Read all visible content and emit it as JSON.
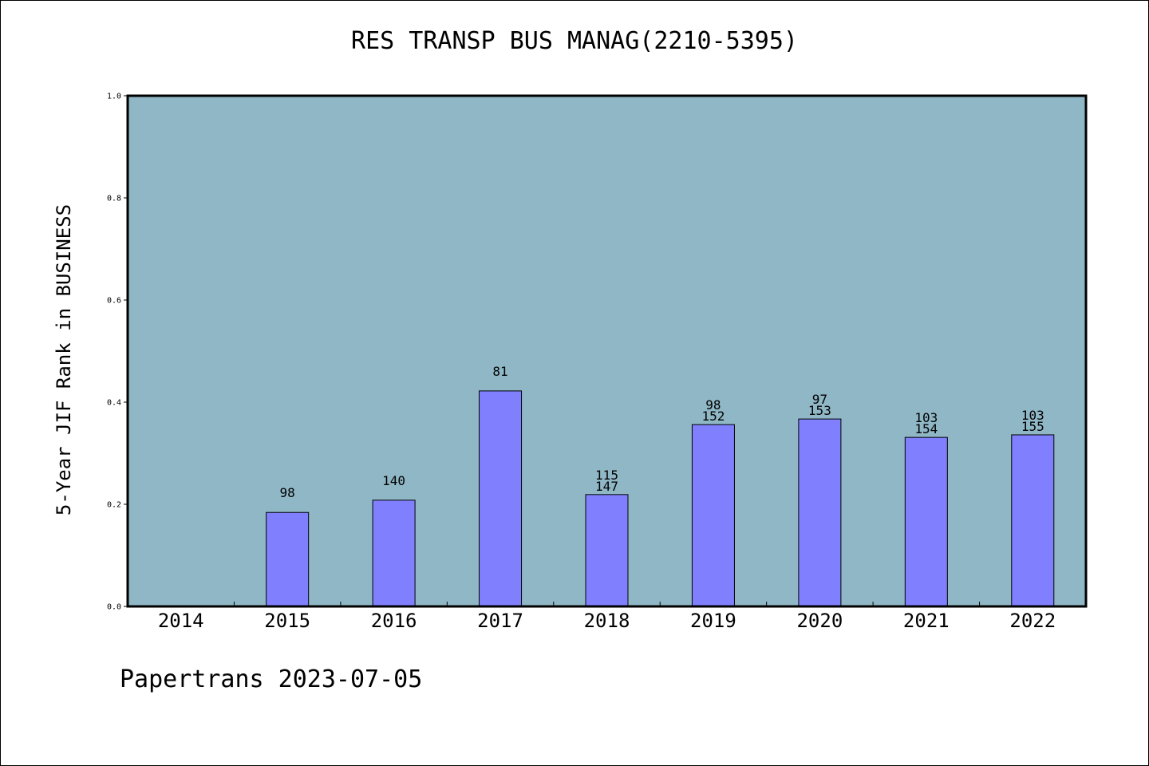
{
  "chart_data": {
    "type": "bar",
    "title": "RES TRANSP BUS MANAG(2210-5395)",
    "ylabel": "5-Year JIF Rank in BUSINESS",
    "xlabel": "",
    "categories": [
      "2014",
      "2015",
      "2016",
      "2017",
      "2018",
      "2019",
      "2020",
      "2021",
      "2022"
    ],
    "values": [
      null,
      0.184,
      0.208,
      0.422,
      0.219,
      0.356,
      0.367,
      0.331,
      0.336
    ],
    "bar_labels": [
      [],
      [
        "98"
      ],
      [
        "140"
      ],
      [
        "81"
      ],
      [
        "115",
        "147"
      ],
      [
        "98",
        "152"
      ],
      [
        "97",
        "153"
      ],
      [
        "103",
        "154"
      ],
      [
        "103",
        "155"
      ]
    ],
    "ylim": [
      0,
      1.0
    ],
    "yticks": [
      "0.0",
      "0.2",
      "0.4",
      "0.6",
      "0.8",
      "1.0"
    ],
    "grid": false,
    "colors": {
      "plot_background": "#8fb7c5",
      "bar_fill": "#8080ff",
      "bar_stroke": "#000000"
    }
  },
  "footer": {
    "text": "Papertrans 2023-07-05"
  }
}
